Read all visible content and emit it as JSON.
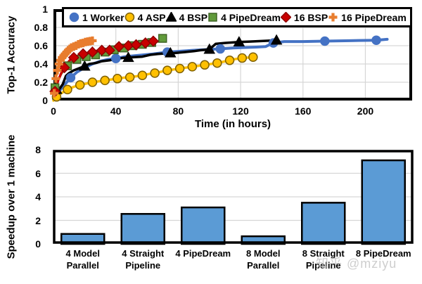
{
  "watermark": "知乎 @mziyu",
  "chart_data": [
    {
      "id": "accuracy",
      "type": "line",
      "xlabel": "Time (in hours)",
      "ylabel": "Top-1 Accuracy",
      "xlim": [
        0,
        230
      ],
      "ylim": [
        0,
        1
      ],
      "xticks": [
        0,
        40,
        80,
        120,
        160,
        200
      ],
      "ytick_values": [
        0,
        0.2,
        0.4,
        0.6,
        0.8,
        1
      ],
      "ytick_labels": [
        "0",
        "0.2",
        "0.4",
        "0.6",
        "0.8",
        "1"
      ],
      "grid": true,
      "grid_color": "#d6d6d6",
      "legend_position": "top",
      "series": [
        {
          "name": "1 Worker",
          "color": "#4472C4",
          "marker": "circle",
          "marker_fill": "#4472C4",
          "marker_stroke": "#4472C4",
          "line_width": 4,
          "points": [
            [
              0,
              0.02
            ],
            [
              3,
              0.09
            ],
            [
              7,
              0.17
            ],
            [
              11,
              0.25
            ],
            [
              15,
              0.31
            ],
            [
              20,
              0.36
            ],
            [
              25,
              0.4
            ],
            [
              30,
              0.43
            ],
            [
              35,
              0.45
            ],
            [
              40,
              0.46
            ],
            [
              46,
              0.48
            ],
            [
              52,
              0.49
            ],
            [
              58,
              0.5
            ],
            [
              64,
              0.51
            ],
            [
              73,
              0.53
            ],
            [
              82,
              0.54
            ],
            [
              90,
              0.55
            ],
            [
              100,
              0.56
            ],
            [
              107,
              0.565
            ],
            [
              115,
              0.575
            ],
            [
              122,
              0.58
            ],
            [
              130,
              0.585
            ],
            [
              136,
              0.59
            ],
            [
              141,
              0.63
            ],
            [
              148,
              0.645
            ],
            [
              160,
              0.645
            ],
            [
              174,
              0.65
            ],
            [
              190,
              0.655
            ],
            [
              207,
              0.66
            ],
            [
              214,
              0.67
            ]
          ],
          "marker_points": [
            [
              11,
              0.25
            ],
            [
              40,
              0.46
            ],
            [
              73,
              0.53
            ],
            [
              107,
              0.565
            ],
            [
              141,
              0.63
            ],
            [
              174,
              0.65
            ],
            [
              207,
              0.66
            ]
          ]
        },
        {
          "name": "4 ASP",
          "color": "#FFC000",
          "marker": "circle",
          "marker_fill": "#FFC000",
          "marker_stroke": "#7F6000",
          "line_width": 3.5,
          "points": [
            [
              0,
              0.0
            ],
            [
              2,
              0.04
            ],
            [
              5,
              0.08
            ],
            [
              9,
              0.12
            ],
            [
              13,
              0.15
            ],
            [
              17,
              0.17
            ],
            [
              21,
              0.185
            ],
            [
              25,
              0.2
            ],
            [
              29,
              0.21
            ],
            [
              33,
              0.22
            ],
            [
              37,
              0.23
            ],
            [
              41,
              0.24
            ],
            [
              45,
              0.25
            ],
            [
              49,
              0.255
            ],
            [
              53,
              0.265
            ],
            [
              57,
              0.275
            ],
            [
              61,
              0.29
            ],
            [
              65,
              0.3
            ],
            [
              69,
              0.315
            ],
            [
              73,
              0.33
            ],
            [
              77,
              0.34
            ],
            [
              81,
              0.35
            ],
            [
              85,
              0.36
            ],
            [
              89,
              0.37
            ],
            [
              93,
              0.38
            ],
            [
              97,
              0.39
            ],
            [
              101,
              0.4
            ],
            [
              105,
              0.41
            ],
            [
              109,
              0.425
            ],
            [
              113,
              0.44
            ],
            [
              117,
              0.455
            ],
            [
              121,
              0.465
            ],
            [
              125,
              0.47
            ],
            [
              128,
              0.475
            ]
          ],
          "marker_points": [
            [
              2,
              0.04
            ],
            [
              9,
              0.12
            ],
            [
              17,
              0.17
            ],
            [
              25,
              0.2
            ],
            [
              33,
              0.22
            ],
            [
              41,
              0.24
            ],
            [
              49,
              0.255
            ],
            [
              57,
              0.275
            ],
            [
              65,
              0.3
            ],
            [
              73,
              0.33
            ],
            [
              81,
              0.35
            ],
            [
              89,
              0.37
            ],
            [
              97,
              0.39
            ],
            [
              105,
              0.41
            ],
            [
              113,
              0.44
            ],
            [
              121,
              0.465
            ],
            [
              128,
              0.475
            ]
          ]
        },
        {
          "name": "4 BSP",
          "color": "#000000",
          "marker": "triangle",
          "marker_fill": "#000000",
          "marker_stroke": "#000000",
          "line_width": 3.5,
          "points": [
            [
              0,
              0.02
            ],
            [
              2,
              0.12
            ],
            [
              4,
              0.13
            ],
            [
              6,
              0.18
            ],
            [
              8,
              0.27
            ],
            [
              10,
              0.3
            ],
            [
              13,
              0.33
            ],
            [
              16,
              0.35
            ],
            [
              19,
              0.37
            ],
            [
              23,
              0.4
            ],
            [
              27,
              0.41
            ],
            [
              31,
              0.43
            ],
            [
              36,
              0.44
            ],
            [
              40,
              0.455
            ],
            [
              44,
              0.465
            ],
            [
              48,
              0.47
            ],
            [
              52,
              0.475
            ],
            [
              57,
              0.48
            ],
            [
              62,
              0.5
            ],
            [
              67,
              0.51
            ],
            [
              72,
              0.515
            ],
            [
              78,
              0.52
            ],
            [
              84,
              0.53
            ],
            [
              90,
              0.54
            ],
            [
              94,
              0.55
            ],
            [
              100,
              0.56
            ],
            [
              104,
              0.62
            ],
            [
              110,
              0.63
            ],
            [
              119,
              0.64
            ],
            [
              126,
              0.645
            ],
            [
              132,
              0.65
            ],
            [
              138,
              0.655
            ],
            [
              143,
              0.66
            ]
          ],
          "marker_points": [
            [
              2,
              0.12
            ],
            [
              20,
              0.375
            ],
            [
              48,
              0.47
            ],
            [
              75,
              0.52
            ],
            [
              100,
              0.56
            ],
            [
              119,
              0.64
            ],
            [
              143,
              0.66
            ]
          ]
        },
        {
          "name": "4 PipeDream",
          "color": "#619B3B",
          "marker": "square",
          "marker_fill": "#619B3B",
          "marker_stroke": "#3F6425",
          "line_width": 3,
          "points": [
            [
              0,
              0.08
            ],
            [
              1,
              0.14
            ],
            [
              3,
              0.22
            ],
            [
              5,
              0.29
            ],
            [
              7,
              0.34
            ],
            [
              9,
              0.38
            ],
            [
              11,
              0.41
            ],
            [
              13,
              0.44
            ],
            [
              15,
              0.45
            ],
            [
              18,
              0.465
            ],
            [
              21,
              0.48
            ],
            [
              24,
              0.49
            ],
            [
              27,
              0.5
            ],
            [
              30,
              0.515
            ],
            [
              33,
              0.53
            ],
            [
              36,
              0.55
            ],
            [
              39,
              0.555
            ],
            [
              42,
              0.565
            ],
            [
              45,
              0.575
            ],
            [
              48,
              0.585
            ],
            [
              51,
              0.6
            ],
            [
              54,
              0.61
            ],
            [
              57,
              0.615
            ],
            [
              60,
              0.625
            ],
            [
              63,
              0.635
            ],
            [
              66,
              0.64
            ],
            [
              68,
              0.65
            ],
            [
              70,
              0.68
            ]
          ],
          "marker_points": [
            [
              1,
              0.14
            ],
            [
              9,
              0.38
            ],
            [
              15,
              0.45
            ],
            [
              21,
              0.48
            ],
            [
              27,
              0.5
            ],
            [
              33,
              0.53
            ],
            [
              39,
              0.555
            ],
            [
              45,
              0.575
            ],
            [
              51,
              0.6
            ],
            [
              57,
              0.615
            ],
            [
              63,
              0.635
            ],
            [
              70,
              0.68
            ]
          ]
        },
        {
          "name": "16 BSP",
          "color": "#C90000",
          "marker": "diamond",
          "marker_fill": "#C90000",
          "marker_stroke": "#8F0000",
          "line_width": 3.5,
          "points": [
            [
              0,
              0.07
            ],
            [
              1,
              0.1
            ],
            [
              3,
              0.22
            ],
            [
              5,
              0.3
            ],
            [
              7,
              0.36
            ],
            [
              9,
              0.41
            ],
            [
              11,
              0.45
            ],
            [
              13,
              0.47
            ],
            [
              15,
              0.485
            ],
            [
              17,
              0.5
            ],
            [
              19,
              0.51
            ],
            [
              22,
              0.52
            ],
            [
              25,
              0.53
            ],
            [
              28,
              0.545
            ],
            [
              31,
              0.55
            ],
            [
              34,
              0.555
            ],
            [
              36,
              0.55
            ],
            [
              39,
              0.575
            ],
            [
              42,
              0.59
            ],
            [
              45,
              0.585
            ],
            [
              48,
              0.6
            ],
            [
              51,
              0.615
            ],
            [
              53,
              0.61
            ],
            [
              56,
              0.625
            ],
            [
              59,
              0.63
            ],
            [
              62,
              0.645
            ],
            [
              64,
              0.65
            ],
            [
              66,
              0.655
            ]
          ],
          "marker_points": [
            [
              1,
              0.1
            ],
            [
              7,
              0.36
            ],
            [
              13,
              0.47
            ],
            [
              19,
              0.51
            ],
            [
              25,
              0.53
            ],
            [
              31,
              0.55
            ],
            [
              36,
              0.55
            ],
            [
              42,
              0.59
            ],
            [
              48,
              0.6
            ],
            [
              53,
              0.61
            ],
            [
              59,
              0.63
            ],
            [
              64,
              0.65
            ]
          ]
        },
        {
          "name": "16 PipeDream",
          "color": "#E87D2E",
          "marker": "plus",
          "marker_fill": "#E87D2E",
          "marker_stroke": "#E87D2E",
          "line_width": 3.5,
          "points": [
            [
              0,
              0.07
            ],
            [
              0.5,
              0.08
            ],
            [
              1.5,
              0.24
            ],
            [
              2.5,
              0.33
            ],
            [
              3.5,
              0.4
            ],
            [
              4.5,
              0.44
            ],
            [
              5.5,
              0.47
            ],
            [
              6.5,
              0.49
            ],
            [
              7.5,
              0.51
            ],
            [
              8.5,
              0.53
            ],
            [
              9.5,
              0.55
            ],
            [
              10.5,
              0.565
            ],
            [
              11.5,
              0.58
            ],
            [
              13,
              0.59
            ],
            [
              14.5,
              0.6
            ],
            [
              16,
              0.615
            ],
            [
              17.5,
              0.625
            ],
            [
              19,
              0.63
            ],
            [
              20.5,
              0.64
            ],
            [
              22,
              0.645
            ],
            [
              23.5,
              0.65
            ],
            [
              25,
              0.655
            ]
          ],
          "marker_points": [
            [
              0.5,
              0.08
            ],
            [
              1.5,
              0.24
            ],
            [
              2.5,
              0.33
            ],
            [
              3.5,
              0.4
            ],
            [
              4.5,
              0.44
            ],
            [
              5.5,
              0.47
            ],
            [
              6.5,
              0.49
            ],
            [
              7.5,
              0.51
            ],
            [
              8.5,
              0.53
            ],
            [
              9.5,
              0.55
            ],
            [
              10.5,
              0.565
            ],
            [
              11.5,
              0.58
            ],
            [
              13,
              0.59
            ],
            [
              14.5,
              0.6
            ],
            [
              16,
              0.615
            ],
            [
              17.5,
              0.625
            ],
            [
              19,
              0.63
            ],
            [
              20.5,
              0.64
            ],
            [
              22,
              0.645
            ],
            [
              23.5,
              0.65
            ],
            [
              25,
              0.655
            ]
          ]
        }
      ]
    },
    {
      "id": "speedup",
      "type": "bar",
      "ylabel": "Speedup over 1 machine",
      "ylim": [
        0,
        8
      ],
      "yticks": [
        0,
        2,
        4,
        6,
        8
      ],
      "grid": true,
      "grid_color": "#d6d6d6",
      "bar_color": "#5B9BD5",
      "bar_border": "#000000",
      "categories": [
        [
          "4 Model",
          "Parallel"
        ],
        [
          "4 Straight",
          "Pipeline"
        ],
        [
          "4 PipeDream"
        ],
        [
          "8 Model",
          "Parallel"
        ],
        [
          "8 Straight",
          "Pipeline"
        ],
        [
          "8 PipeDream"
        ]
      ],
      "values": [
        0.85,
        2.55,
        3.1,
        0.65,
        3.5,
        7.1
      ]
    }
  ]
}
